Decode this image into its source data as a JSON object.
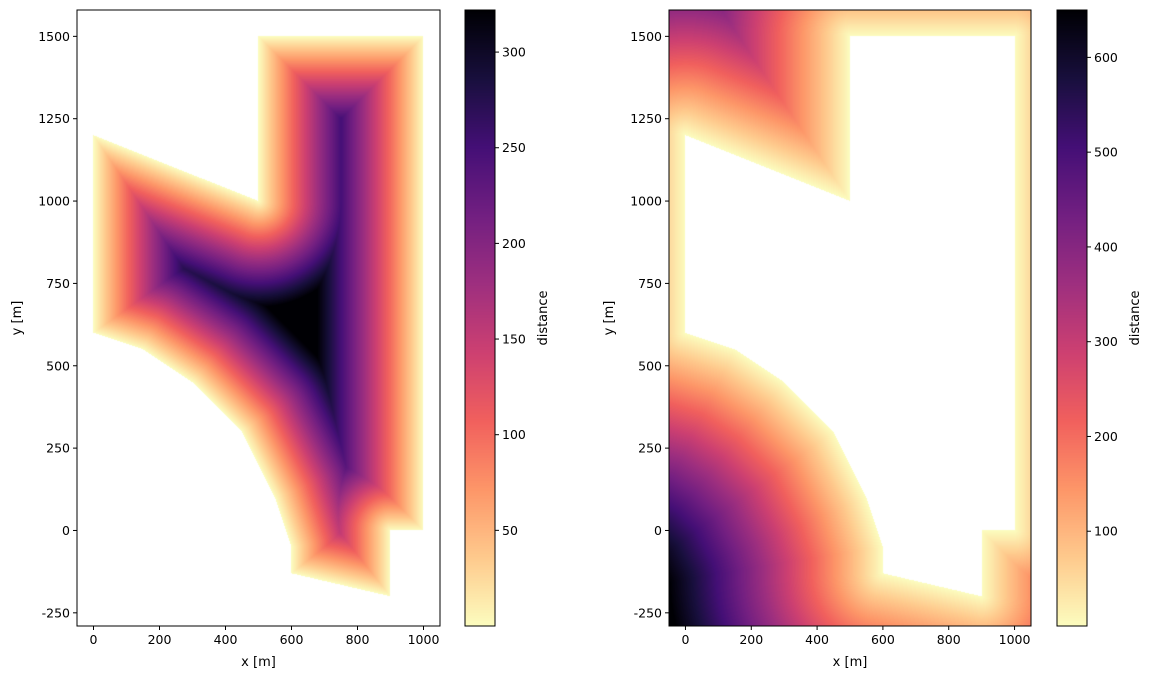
{
  "colormap": {
    "name": "magma_r",
    "stops": [
      "#fcfdbf",
      "#feca8d",
      "#fd9668",
      "#f1605d",
      "#cd4071",
      "#9e2f7f",
      "#721f81",
      "#440f76",
      "#180f3d",
      "#000004"
    ]
  },
  "chart_data": [
    {
      "type": "heatmap",
      "title": "",
      "xlabel": "x [m]",
      "ylabel": "y [m]",
      "xlim": [
        -50,
        1050
      ],
      "ylim": [
        -290,
        1580
      ],
      "xticks": [
        "0",
        "200",
        "400",
        "600",
        "800",
        "1000"
      ],
      "xtick_values": [
        0,
        200,
        400,
        600,
        800,
        1000
      ],
      "yticks": [
        "-250",
        "0",
        "250",
        "500",
        "750",
        "1000",
        "1250",
        "1500"
      ],
      "ytick_values": [
        -250,
        0,
        250,
        500,
        750,
        1000,
        1250,
        1500
      ],
      "colorbar": {
        "label": "distance",
        "range": [
          0,
          322
        ],
        "ticks": [
          "50",
          "100",
          "150",
          "200",
          "250",
          "300"
        ],
        "tick_values": [
          50,
          100,
          150,
          200,
          250,
          300
        ]
      },
      "field": "distance to polygon boundary (inside polygon)",
      "polygon": [
        [
          0,
          600
        ],
        [
          0,
          1200
        ],
        [
          500,
          1000
        ],
        [
          500,
          1500
        ],
        [
          1000,
          1500
        ],
        [
          1000,
          0
        ],
        [
          900,
          0
        ],
        [
          900,
          -200
        ],
        [
          600,
          -130
        ],
        [
          600,
          -50
        ],
        [
          550,
          100
        ],
        [
          450,
          300
        ],
        [
          300,
          450
        ],
        [
          150,
          550
        ]
      ]
    },
    {
      "type": "heatmap",
      "title": "",
      "xlabel": "x [m]",
      "ylabel": "y [m]",
      "xlim": [
        -50,
        1050
      ],
      "ylim": [
        -290,
        1580
      ],
      "xticks": [
        "0",
        "200",
        "400",
        "600",
        "800",
        "1000"
      ],
      "xtick_values": [
        0,
        200,
        400,
        600,
        800,
        1000
      ],
      "yticks": [
        "-250",
        "0",
        "250",
        "500",
        "750",
        "1000",
        "1250",
        "1500"
      ],
      "ytick_values": [
        -250,
        0,
        250,
        500,
        750,
        1000,
        1250,
        1500
      ],
      "colorbar": {
        "label": "distance",
        "range": [
          0,
          650
        ],
        "ticks": [
          "100",
          "200",
          "300",
          "400",
          "500",
          "600"
        ],
        "tick_values": [
          100,
          200,
          300,
          400,
          500,
          600
        ]
      },
      "field": "distance to polygon boundary (outside polygon)",
      "polygon": [
        [
          0,
          600
        ],
        [
          0,
          1200
        ],
        [
          500,
          1000
        ],
        [
          500,
          1500
        ],
        [
          1000,
          1500
        ],
        [
          1000,
          0
        ],
        [
          900,
          0
        ],
        [
          900,
          -200
        ],
        [
          600,
          -130
        ],
        [
          600,
          -50
        ],
        [
          550,
          100
        ],
        [
          450,
          300
        ],
        [
          300,
          450
        ],
        [
          150,
          550
        ]
      ]
    }
  ]
}
